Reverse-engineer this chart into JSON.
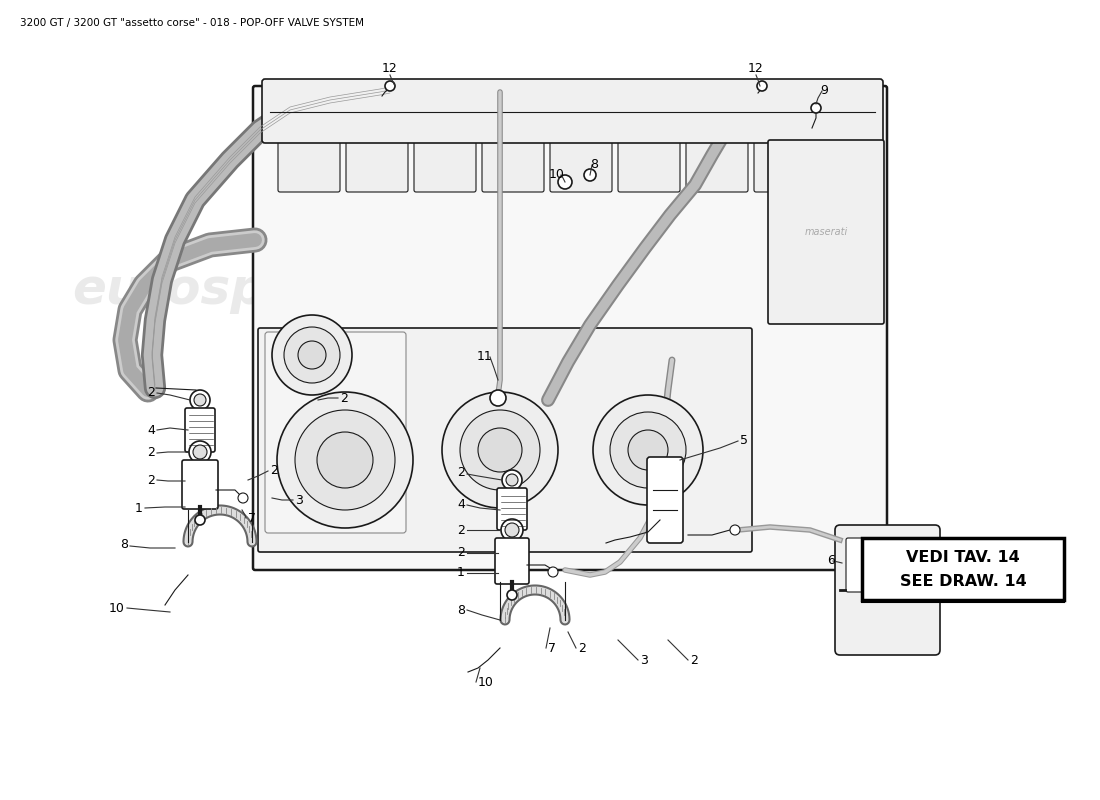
{
  "title": "3200 GT / 3200 GT \"assetto corse\" - 018 - POP-OFF VALVE SYSTEM",
  "title_fontsize": 7.5,
  "bg_color": "#ffffff",
  "line_color": "#1a1a1a",
  "light_line": "#555555",
  "fill_light": "#f5f5f5",
  "fill_mid": "#e8e8e8",
  "watermark_color": "#cccccc",
  "watermark_alpha": 0.4,
  "vedi_text1": "VEDI TAV. 14",
  "vedi_text2": "SEE DRAW. 14",
  "vedi_fontsize": 11.5,
  "label_fontsize": 9
}
